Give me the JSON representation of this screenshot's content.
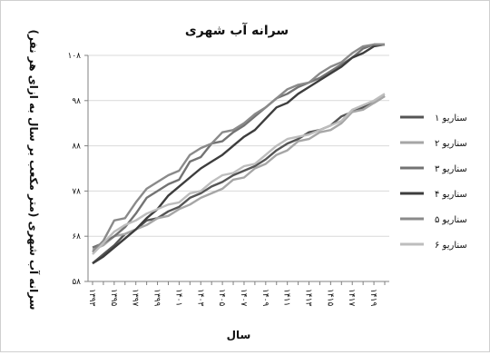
{
  "chart_data": {
    "type": "line",
    "title": "سرانه آب شهری",
    "xlabel": "سال",
    "ylabel": "سرانه آب شهری (متر مکعب بر سال به ازای هر نفر)",
    "ylim": [
      58,
      108
    ],
    "yticks": [
      58,
      68,
      78,
      88,
      98,
      108
    ],
    "ytick_labels": [
      "۵۸",
      "۶۸",
      "۷۸",
      "۸۸",
      "۹۸",
      "۱۰۸"
    ],
    "x": [
      1393,
      1394,
      1395,
      1396,
      1397,
      1398,
      1399,
      1400,
      1401,
      1402,
      1403,
      1404,
      1405,
      1406,
      1407,
      1408,
      1409,
      1410,
      1411,
      1412,
      1413,
      1414,
      1415,
      1416,
      1417,
      1418,
      1419,
      1420
    ],
    "xticks": [
      1393,
      1395,
      1397,
      1399,
      1401,
      1403,
      1405,
      1407,
      1409,
      1411,
      1413,
      1415,
      1417,
      1419
    ],
    "xtick_labels": [
      "۱۳۹۳",
      "۱۳۹۵",
      "۱۳۹۷",
      "۱۳۹۹",
      "۱۴۰۱",
      "۱۴۰۳",
      "۱۴۰۵",
      "۱۴۰۷",
      "۱۴۰۹",
      "۱۴۱۱",
      "۱۴۱۳",
      "۱۴۱۵",
      "۱۴۱۷",
      "۱۴۱۹"
    ],
    "grid": "horizontal",
    "legend_position": "right",
    "series": [
      {
        "name": "سناریو ۱",
        "color": "#555555",
        "values": [
          62.0,
          64.0,
          66.0,
          68.5,
          69.5,
          71.5,
          72.0,
          73.5,
          74.5,
          76.5,
          77.5,
          79.0,
          80.0,
          81.5,
          82.5,
          83.5,
          85.0,
          87.0,
          88.5,
          89.5,
          91.0,
          91.5,
          92.5,
          94.5,
          95.5,
          96.5,
          97.5,
          99.0
        ]
      },
      {
        "name": "سناریو ۲",
        "color": "#a6a6a6",
        "values": [
          65.0,
          66.0,
          68.0,
          68.5,
          69.5,
          70.5,
          72.0,
          72.5,
          74.0,
          75.0,
          76.5,
          77.5,
          78.5,
          80.5,
          81.0,
          83.0,
          84.0,
          86.0,
          87.0,
          89.0,
          89.5,
          91.0,
          91.5,
          93.0,
          95.5,
          96.0,
          97.5,
          99.0
        ]
      },
      {
        "name": "سناریو ۳",
        "color": "#737373",
        "values": [
          65.5,
          66.5,
          68.0,
          70.0,
          73.0,
          76.5,
          78.0,
          79.5,
          80.5,
          84.5,
          85.5,
          88.5,
          89.0,
          91.0,
          92.5,
          94.5,
          96.5,
          98.5,
          99.5,
          101.0,
          102.0,
          103.0,
          104.5,
          106.0,
          107.5,
          109.5,
          110.5,
          111.5
        ]
      },
      {
        "name": "سناریو ۴",
        "color": "#3d3d3d",
        "values": [
          62.0,
          63.5,
          65.5,
          67.5,
          69.5,
          72.0,
          74.0,
          77.0,
          79.0,
          81.0,
          83.0,
          84.5,
          86.0,
          88.0,
          90.0,
          91.5,
          94.0,
          96.5,
          97.5,
          99.5,
          101.0,
          102.5,
          104.0,
          105.5,
          107.5,
          108.5,
          110.0,
          111.5
        ]
      },
      {
        "name": "سناریو ۵",
        "color": "#8a8a8a",
        "values": [
          64.5,
          67.0,
          71.5,
          72.0,
          75.5,
          78.5,
          80.0,
          81.5,
          82.5,
          86.0,
          87.5,
          88.5,
          91.0,
          91.5,
          93.0,
          95.0,
          96.5,
          98.5,
          100.5,
          101.5,
          102.0,
          104.0,
          105.5,
          106.5,
          108.5,
          110.0,
          110.5,
          111.5
        ]
      },
      {
        "name": "سناریو ۶",
        "color": "#bdbdbd",
        "values": [
          64.0,
          66.5,
          69.0,
          70.5,
          71.5,
          73.0,
          74.0,
          75.0,
          75.5,
          77.5,
          78.0,
          80.0,
          81.5,
          82.0,
          83.5,
          84.0,
          86.0,
          88.0,
          89.5,
          90.0,
          90.5,
          91.5,
          92.5,
          93.5,
          96.0,
          97.0,
          98.0,
          99.5
        ]
      }
    ]
  }
}
